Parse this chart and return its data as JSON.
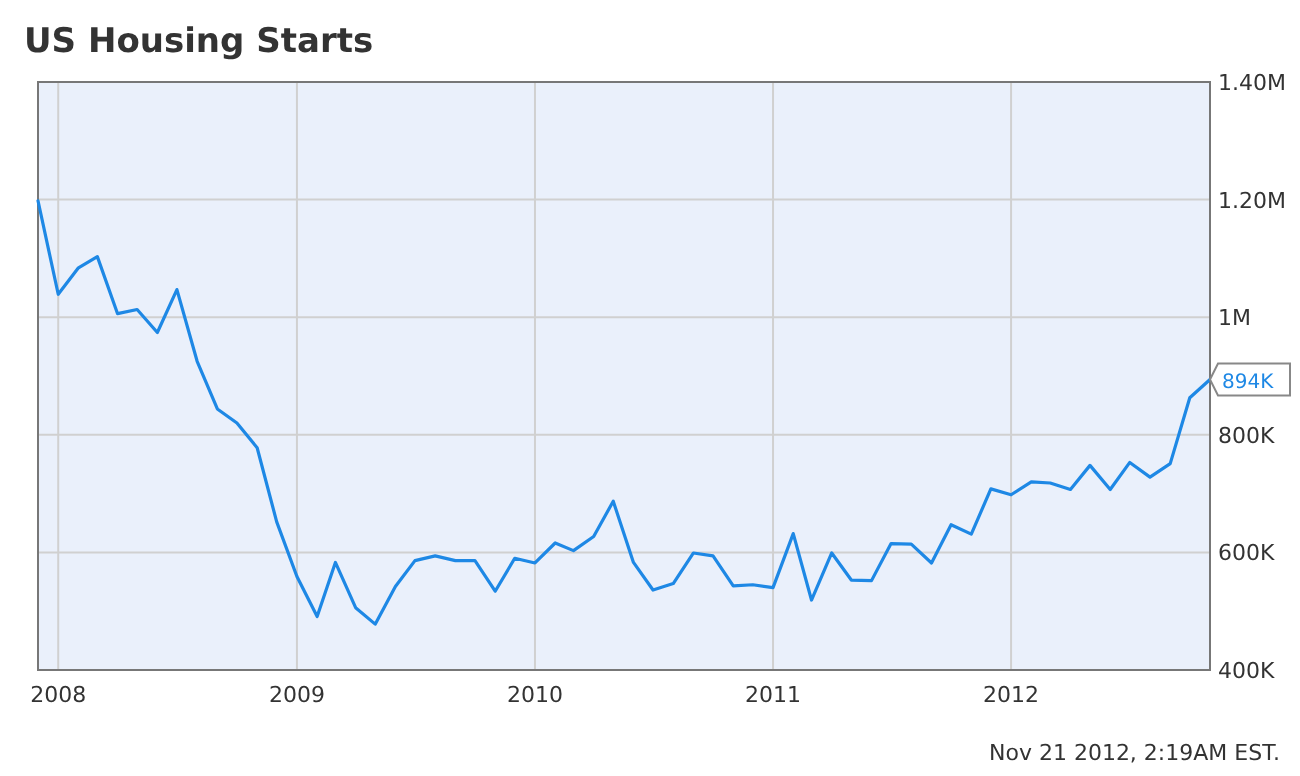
{
  "chart_data": {
    "type": "line",
    "title": "US Housing Starts",
    "x": [
      "2007-12",
      "2008-01",
      "2008-02",
      "2008-03",
      "2008-04",
      "2008-05",
      "2008-06",
      "2008-07",
      "2008-08",
      "2008-09",
      "2008-10",
      "2008-11",
      "2008-12",
      "2009-01",
      "2009-02",
      "2009-03",
      "2009-04",
      "2009-05",
      "2009-06",
      "2009-07",
      "2009-08",
      "2009-09",
      "2009-10",
      "2009-11",
      "2009-12",
      "2010-01",
      "2010-02",
      "2010-03",
      "2010-04",
      "2010-05",
      "2010-06",
      "2010-07",
      "2010-08",
      "2010-09",
      "2010-10",
      "2010-11",
      "2010-12",
      "2011-01",
      "2011-02",
      "2011-03",
      "2011-04",
      "2011-05",
      "2011-06",
      "2011-07",
      "2011-08",
      "2011-09",
      "2011-10",
      "2011-11",
      "2011-12",
      "2012-01",
      "2012-02",
      "2012-03",
      "2012-04",
      "2012-05",
      "2012-06",
      "2012-07",
      "2012-08",
      "2012-09",
      "2012-10",
      "2012-11"
    ],
    "series": [
      {
        "color": "#1e88e5",
        "values": [
          1198000,
          1039000,
          1084000,
          1103000,
          1006000,
          1013000,
          974000,
          1047000,
          925000,
          844000,
          820000,
          778000,
          652000,
          559000,
          491000,
          583000,
          506000,
          478000,
          542000,
          586000,
          594000,
          586000,
          586000,
          534000,
          590000,
          582000,
          616000,
          603000,
          627000,
          687000,
          583000,
          536000,
          547000,
          599000,
          594000,
          543000,
          545000,
          540000,
          632000,
          519000,
          599000,
          553000,
          552000,
          615000,
          614000,
          582000,
          647000,
          631000,
          708000,
          698000,
          720000,
          718000,
          707000,
          748000,
          707000,
          753000,
          728000,
          751000,
          863000,
          894000
        ]
      }
    ],
    "xlim": [
      "2007-12",
      "2012-11"
    ],
    "xticks": [
      "2008",
      "2009",
      "2010",
      "2011",
      "2012"
    ],
    "ylim": [
      400000,
      1400000
    ],
    "yticks": [
      {
        "value": 400000,
        "label": "400K"
      },
      {
        "value": 600000,
        "label": "600K"
      },
      {
        "value": 800000,
        "label": "800K"
      },
      {
        "value": 1000000,
        "label": "1M"
      },
      {
        "value": 1200000,
        "label": "1.20M"
      },
      {
        "value": 1400000,
        "label": "1.40M"
      }
    ],
    "grid": true,
    "marker": "none",
    "line_style": "solid",
    "annotations": [
      {
        "text": "894K",
        "x": "2012-11",
        "y": 894000
      },
      "Nov 21 2012, 2:19AM EST."
    ]
  }
}
